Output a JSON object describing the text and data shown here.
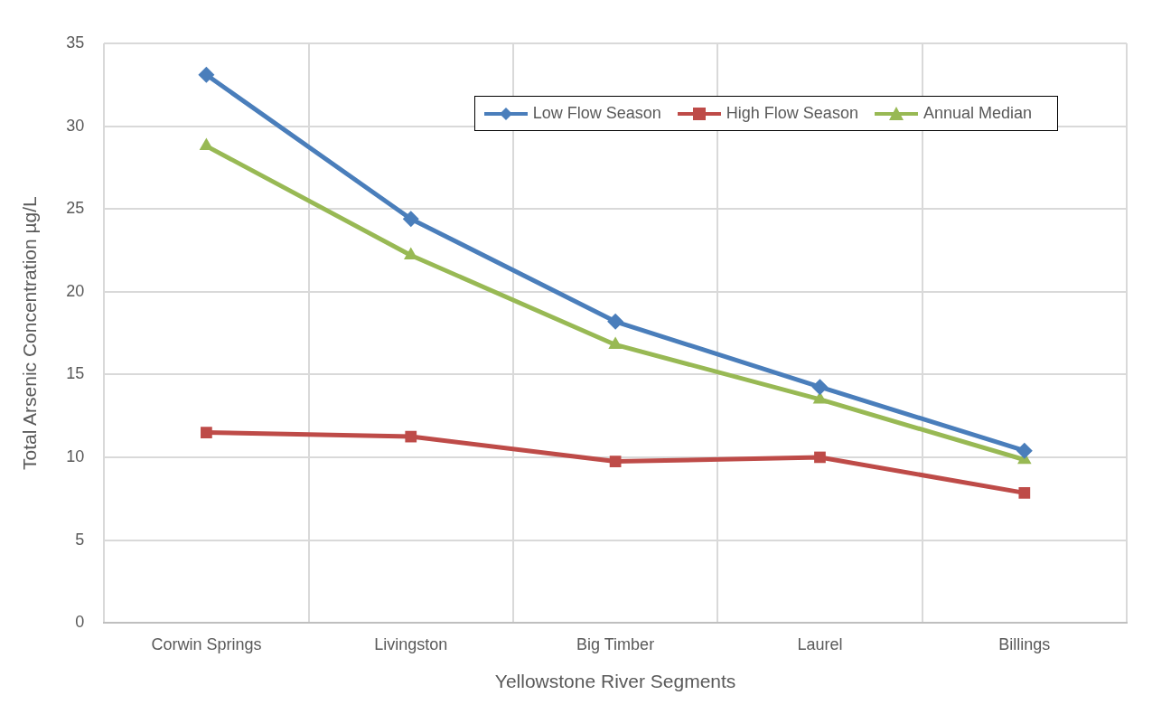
{
  "chart_data": {
    "type": "line",
    "xlabel": "Yellowstone River Segments",
    "ylabel": "Total Arsenic Concentration µg/L",
    "categories": [
      "Corwin Springs",
      "Livingston",
      "Big Timber",
      "Laurel",
      "Billings"
    ],
    "series": [
      {
        "name": "Low Flow Season",
        "color": "#4a7ebb",
        "marker": "diamond",
        "values": [
          33.1,
          24.4,
          18.2,
          14.25,
          10.4
        ]
      },
      {
        "name": "High Flow Season",
        "color": "#be4b48",
        "marker": "square",
        "values": [
          11.5,
          11.25,
          9.75,
          10.0,
          7.85
        ]
      },
      {
        "name": "Annual Median",
        "color": "#98b954",
        "marker": "triangle",
        "values": [
          28.8,
          22.2,
          16.8,
          13.5,
          9.85
        ]
      }
    ],
    "ylim": [
      0,
      35
    ],
    "yticks": [
      0,
      5,
      10,
      15,
      20,
      25,
      30,
      35
    ],
    "grid": true,
    "legend": "top right",
    "line_style": "solid"
  }
}
